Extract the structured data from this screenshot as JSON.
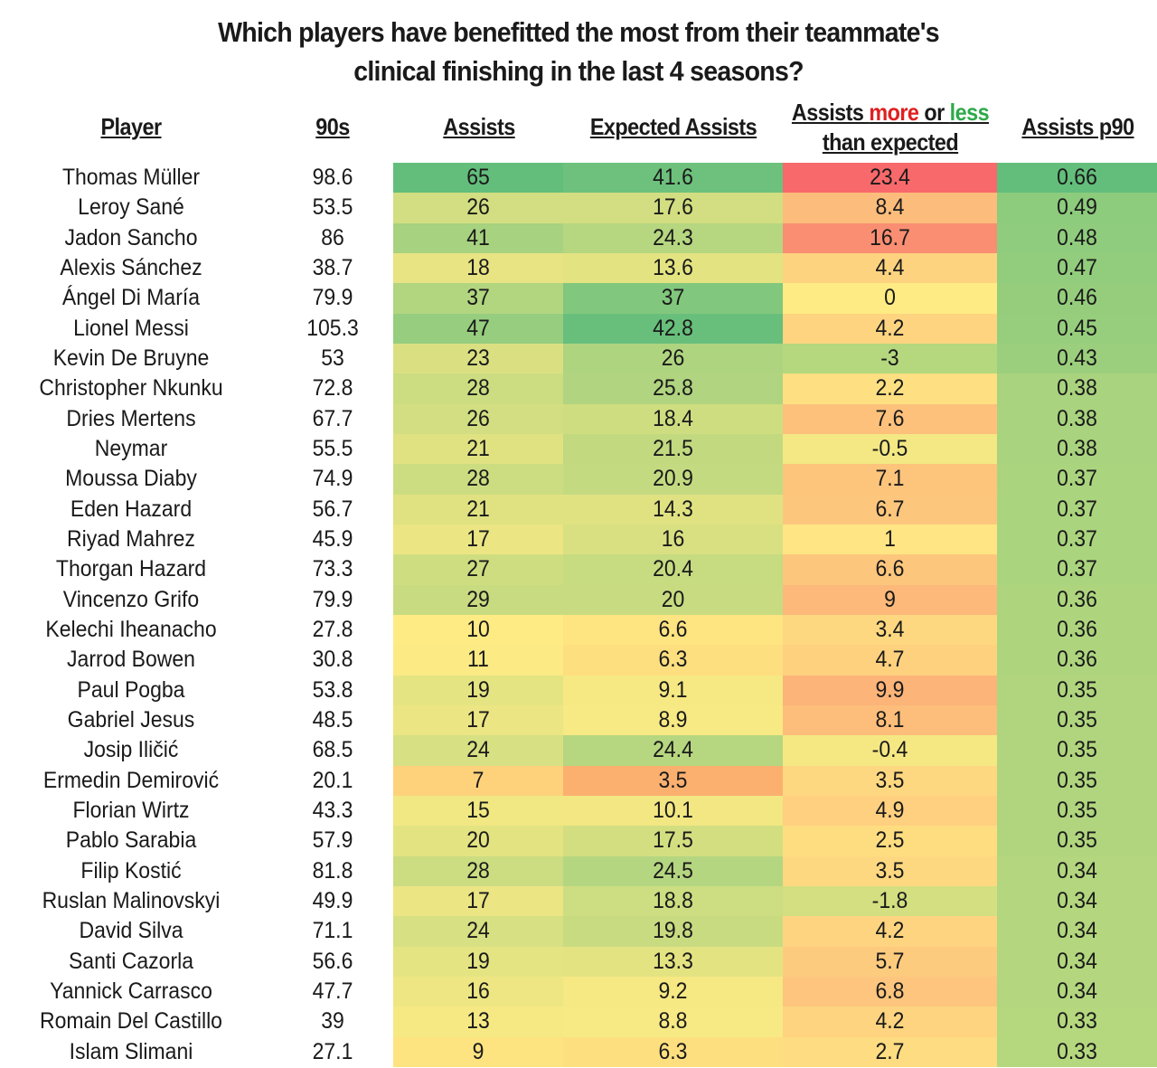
{
  "chart_data": {
    "type": "table",
    "title_line1": "Which players have benefitted the most from their teammate's",
    "title_line2": "clinical finishing in the last 4 seasons?",
    "headers": {
      "player": "Player",
      "nineties": "90s",
      "assists": "Assists",
      "xa": "Expected Assists",
      "diff_a": "Assists ",
      "diff_more": "more",
      "diff_or": " or ",
      "diff_less": "less",
      "diff_b": "than expected",
      "p90": "Assists p90"
    },
    "colors": {
      "green": "#63be7b",
      "yellow": "#ffeb84",
      "red": "#f8696b",
      "orange": "#fbb070",
      "header_more": "#e02020",
      "header_less": "#2eaa4a"
    },
    "rows": [
      {
        "player": "Thomas Müller",
        "nineties": "98.6",
        "assists": "65",
        "xa": "41.6",
        "diff": "23.4",
        "p90": "0.66"
      },
      {
        "player": "Leroy Sané",
        "nineties": "53.5",
        "assists": "26",
        "xa": "17.6",
        "diff": "8.4",
        "p90": "0.49"
      },
      {
        "player": "Jadon Sancho",
        "nineties": "86",
        "assists": "41",
        "xa": "24.3",
        "diff": "16.7",
        "p90": "0.48"
      },
      {
        "player": "Alexis Sánchez",
        "nineties": "38.7",
        "assists": "18",
        "xa": "13.6",
        "diff": "4.4",
        "p90": "0.47"
      },
      {
        "player": "Ángel Di María",
        "nineties": "79.9",
        "assists": "37",
        "xa": "37",
        "diff": "0",
        "p90": "0.46"
      },
      {
        "player": "Lionel Messi",
        "nineties": "105.3",
        "assists": "47",
        "xa": "42.8",
        "diff": "4.2",
        "p90": "0.45"
      },
      {
        "player": "Kevin De Bruyne",
        "nineties": "53",
        "assists": "23",
        "xa": "26",
        "diff": "-3",
        "p90": "0.43"
      },
      {
        "player": "Christopher Nkunku",
        "nineties": "72.8",
        "assists": "28",
        "xa": "25.8",
        "diff": "2.2",
        "p90": "0.38"
      },
      {
        "player": "Dries Mertens",
        "nineties": "67.7",
        "assists": "26",
        "xa": "18.4",
        "diff": "7.6",
        "p90": "0.38"
      },
      {
        "player": "Neymar",
        "nineties": "55.5",
        "assists": "21",
        "xa": "21.5",
        "diff": "-0.5",
        "p90": "0.38"
      },
      {
        "player": "Moussa Diaby",
        "nineties": "74.9",
        "assists": "28",
        "xa": "20.9",
        "diff": "7.1",
        "p90": "0.37"
      },
      {
        "player": "Eden Hazard",
        "nineties": "56.7",
        "assists": "21",
        "xa": "14.3",
        "diff": "6.7",
        "p90": "0.37"
      },
      {
        "player": "Riyad Mahrez",
        "nineties": "45.9",
        "assists": "17",
        "xa": "16",
        "diff": "1",
        "p90": "0.37"
      },
      {
        "player": "Thorgan Hazard",
        "nineties": "73.3",
        "assists": "27",
        "xa": "20.4",
        "diff": "6.6",
        "p90": "0.37"
      },
      {
        "player": "Vincenzo Grifo",
        "nineties": "79.9",
        "assists": "29",
        "xa": "20",
        "diff": "9",
        "p90": "0.36"
      },
      {
        "player": "Kelechi Iheanacho",
        "nineties": "27.8",
        "assists": "10",
        "xa": "6.6",
        "diff": "3.4",
        "p90": "0.36"
      },
      {
        "player": "Jarrod Bowen",
        "nineties": "30.8",
        "assists": "11",
        "xa": "6.3",
        "diff": "4.7",
        "p90": "0.36"
      },
      {
        "player": "Paul Pogba",
        "nineties": "53.8",
        "assists": "19",
        "xa": "9.1",
        "diff": "9.9",
        "p90": "0.35"
      },
      {
        "player": "Gabriel Jesus",
        "nineties": "48.5",
        "assists": "17",
        "xa": "8.9",
        "diff": "8.1",
        "p90": "0.35"
      },
      {
        "player": "Josip Iličić",
        "nineties": "68.5",
        "assists": "24",
        "xa": "24.4",
        "diff": "-0.4",
        "p90": "0.35"
      },
      {
        "player": "Ermedin Demirović",
        "nineties": "20.1",
        "assists": "7",
        "xa": "3.5",
        "diff": "3.5",
        "p90": "0.35"
      },
      {
        "player": "Florian Wirtz",
        "nineties": "43.3",
        "assists": "15",
        "xa": "10.1",
        "diff": "4.9",
        "p90": "0.35"
      },
      {
        "player": "Pablo Sarabia",
        "nineties": "57.9",
        "assists": "20",
        "xa": "17.5",
        "diff": "2.5",
        "p90": "0.35"
      },
      {
        "player": "Filip Kostić",
        "nineties": "81.8",
        "assists": "28",
        "xa": "24.5",
        "diff": "3.5",
        "p90": "0.34"
      },
      {
        "player": "Ruslan Malinovskyi",
        "nineties": "49.9",
        "assists": "17",
        "xa": "18.8",
        "diff": "-1.8",
        "p90": "0.34"
      },
      {
        "player": "David Silva",
        "nineties": "71.1",
        "assists": "24",
        "xa": "19.8",
        "diff": "4.2",
        "p90": "0.34"
      },
      {
        "player": "Santi Cazorla",
        "nineties": "56.6",
        "assists": "19",
        "xa": "13.3",
        "diff": "5.7",
        "p90": "0.34"
      },
      {
        "player": "Yannick Carrasco",
        "nineties": "47.7",
        "assists": "16",
        "xa": "9.2",
        "diff": "6.8",
        "p90": "0.34"
      },
      {
        "player": "Romain Del Castillo",
        "nineties": "39",
        "assists": "13",
        "xa": "8.8",
        "diff": "4.2",
        "p90": "0.33"
      },
      {
        "player": "Islam Slimani",
        "nineties": "27.1",
        "assists": "9",
        "xa": "6.3",
        "diff": "2.7",
        "p90": "0.33"
      }
    ]
  }
}
